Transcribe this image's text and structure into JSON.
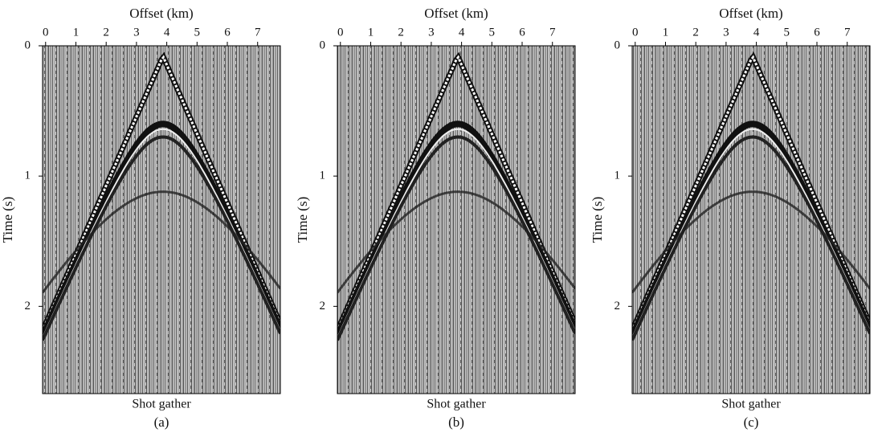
{
  "figure": {
    "panels": [
      {
        "x_label": "Offset (km)",
        "y_label": "Time (s)",
        "xlim": [
          -0.1,
          7.75
        ],
        "xticks": [
          0,
          1,
          2,
          3,
          4,
          5,
          6,
          7
        ],
        "ylim": [
          0,
          2.67
        ],
        "yticks": [
          0,
          1,
          2
        ],
        "caption": "Shot gather",
        "label": "(a)"
      },
      {
        "x_label": "Offset (km)",
        "y_label": "Time (s)",
        "xlim": [
          -0.1,
          7.75
        ],
        "xticks": [
          0,
          1,
          2,
          3,
          4,
          5,
          6,
          7
        ],
        "ylim": [
          0,
          2.67
        ],
        "yticks": [
          0,
          1,
          2
        ],
        "caption": "Shot gather",
        "label": "(b)"
      },
      {
        "x_label": "Offset (km)",
        "y_label": "Time (s)",
        "xlim": [
          -0.1,
          7.75
        ],
        "xticks": [
          0,
          1,
          2,
          3,
          4,
          5,
          6,
          7
        ],
        "ylim": [
          0,
          2.67
        ],
        "yticks": [
          0,
          1,
          2
        ],
        "caption": "Shot gather",
        "label": "(c)"
      }
    ]
  }
}
